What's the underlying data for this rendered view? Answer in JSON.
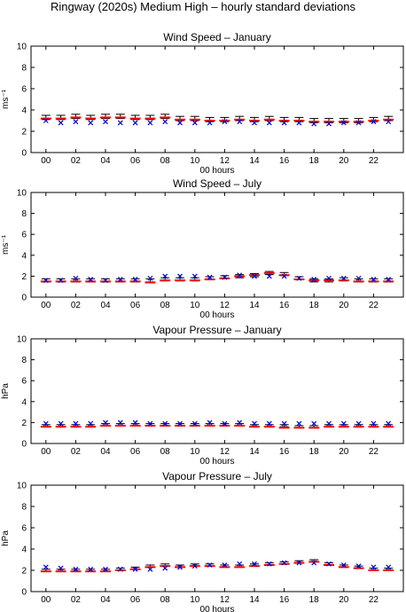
{
  "page_title": "Ringway (2020s) Medium High – hourly standard deviations",
  "chart_data": [
    {
      "type": "scatter",
      "title": "Wind Speed – January",
      "xlabel": "00 hours",
      "ylabel": "ms⁻¹",
      "xlim": [
        -1,
        24
      ],
      "ylim": [
        0,
        10
      ],
      "xticks": [
        0,
        2,
        4,
        6,
        8,
        10,
        12,
        14,
        16,
        18,
        20,
        22
      ],
      "xtick_labels": [
        "00",
        "02",
        "04",
        "06",
        "08",
        "10",
        "12",
        "14",
        "16",
        "18",
        "20",
        "22"
      ],
      "yticks": [
        0,
        2,
        4,
        6,
        8,
        10
      ],
      "x": [
        0,
        1,
        2,
        3,
        4,
        5,
        6,
        7,
        8,
        9,
        10,
        11,
        12,
        13,
        14,
        15,
        16,
        17,
        18,
        19,
        20,
        21,
        22,
        23
      ],
      "series": [
        {
          "marker": "errorbar",
          "color": "#000000",
          "values": [
            3.3,
            3.3,
            3.4,
            3.3,
            3.4,
            3.4,
            3.3,
            3.3,
            3.4,
            3.2,
            3.2,
            3.1,
            3.1,
            3.2,
            3.1,
            3.2,
            3.1,
            3.1,
            3.0,
            3.0,
            3.0,
            3.0,
            3.1,
            3.2
          ],
          "errors": [
            0.2,
            0.2,
            0.2,
            0.2,
            0.2,
            0.2,
            0.2,
            0.2,
            0.2,
            0.2,
            0.2,
            0.2,
            0.2,
            0.2,
            0.2,
            0.2,
            0.2,
            0.2,
            0.2,
            0.2,
            0.2,
            0.2,
            0.2,
            0.2
          ]
        },
        {
          "marker": "bar",
          "color": "#ff0000",
          "values": [
            3.2,
            3.2,
            3.3,
            3.2,
            3.3,
            3.3,
            3.2,
            3.2,
            3.3,
            3.1,
            3.1,
            3.0,
            3.0,
            3.1,
            3.0,
            3.1,
            3.0,
            3.0,
            2.9,
            2.9,
            2.9,
            2.9,
            3.0,
            3.1
          ]
        },
        {
          "marker": "x",
          "color": "#0000cc",
          "values": [
            3.0,
            2.8,
            2.9,
            2.8,
            2.9,
            2.8,
            2.8,
            2.8,
            2.9,
            2.8,
            2.8,
            2.8,
            2.9,
            2.9,
            2.8,
            2.8,
            2.8,
            2.8,
            2.7,
            2.7,
            2.8,
            2.8,
            2.9,
            2.9
          ]
        }
      ]
    },
    {
      "type": "scatter",
      "title": "Wind Speed – July",
      "xlabel": "00 hours",
      "ylabel": "ms⁻¹",
      "xlim": [
        -1,
        24
      ],
      "ylim": [
        0,
        10
      ],
      "xticks": [
        0,
        2,
        4,
        6,
        8,
        10,
        12,
        14,
        16,
        18,
        20,
        22
      ],
      "xtick_labels": [
        "00",
        "02",
        "04",
        "06",
        "08",
        "10",
        "12",
        "14",
        "16",
        "18",
        "20",
        "22"
      ],
      "yticks": [
        0,
        2,
        4,
        6,
        8,
        10
      ],
      "x": [
        0,
        1,
        2,
        3,
        4,
        5,
        6,
        7,
        8,
        9,
        10,
        11,
        12,
        13,
        14,
        15,
        16,
        17,
        18,
        19,
        20,
        21,
        22,
        23
      ],
      "series": [
        {
          "marker": "errorbar",
          "color": "#000000",
          "values": [
            1.6,
            1.6,
            1.6,
            1.6,
            1.6,
            1.6,
            1.6,
            1.6,
            1.7,
            1.7,
            1.7,
            1.8,
            1.9,
            2.0,
            2.1,
            2.3,
            2.2,
            1.8,
            1.6,
            1.6,
            1.7,
            1.6,
            1.6,
            1.6
          ],
          "errors": [
            0.15,
            0.15,
            0.15,
            0.15,
            0.15,
            0.15,
            0.15,
            0.15,
            0.15,
            0.15,
            0.15,
            0.15,
            0.15,
            0.15,
            0.15,
            0.15,
            0.15,
            0.15,
            0.15,
            0.15,
            0.15,
            0.15,
            0.15,
            0.15
          ]
        },
        {
          "marker": "bar",
          "color": "#ff0000",
          "values": [
            1.5,
            1.5,
            1.5,
            1.5,
            1.5,
            1.5,
            1.5,
            1.4,
            1.6,
            1.6,
            1.6,
            1.7,
            1.8,
            2.0,
            2.1,
            2.3,
            2.1,
            1.7,
            1.6,
            1.6,
            1.6,
            1.5,
            1.5,
            1.5
          ]
        },
        {
          "marker": "x",
          "color": "#0000cc",
          "values": [
            1.6,
            1.6,
            1.8,
            1.7,
            1.6,
            1.7,
            1.7,
            1.8,
            2.0,
            2.0,
            2.0,
            1.9,
            1.9,
            2.1,
            2.0,
            2.0,
            2.0,
            1.8,
            1.7,
            1.8,
            1.8,
            1.8,
            1.7,
            1.7
          ]
        }
      ]
    },
    {
      "type": "scatter",
      "title": "Vapour Pressure – January",
      "xlabel": "00 hours",
      "ylabel": "hPa",
      "xlim": [
        -1,
        24
      ],
      "ylim": [
        0,
        10
      ],
      "xticks": [
        0,
        2,
        4,
        6,
        8,
        10,
        12,
        14,
        16,
        18,
        20,
        22
      ],
      "xtick_labels": [
        "00",
        "02",
        "04",
        "06",
        "08",
        "10",
        "12",
        "14",
        "16",
        "18",
        "20",
        "22"
      ],
      "yticks": [
        0,
        2,
        4,
        6,
        8,
        10
      ],
      "x": [
        0,
        1,
        2,
        3,
        4,
        5,
        6,
        7,
        8,
        9,
        10,
        11,
        12,
        13,
        14,
        15,
        16,
        17,
        18,
        19,
        20,
        21,
        22,
        23
      ],
      "series": [
        {
          "marker": "errorbar",
          "color": "#000000",
          "values": [
            1.7,
            1.7,
            1.7,
            1.7,
            1.8,
            1.8,
            1.8,
            1.8,
            1.8,
            1.8,
            1.8,
            1.8,
            1.8,
            1.8,
            1.7,
            1.7,
            1.7,
            1.6,
            1.6,
            1.7,
            1.7,
            1.7,
            1.7,
            1.7
          ],
          "errors": [
            0.1,
            0.1,
            0.1,
            0.1,
            0.1,
            0.1,
            0.1,
            0.1,
            0.1,
            0.1,
            0.1,
            0.1,
            0.1,
            0.1,
            0.1,
            0.1,
            0.1,
            0.1,
            0.1,
            0.1,
            0.1,
            0.1,
            0.1,
            0.1
          ]
        },
        {
          "marker": "bar",
          "color": "#ff0000",
          "values": [
            1.6,
            1.6,
            1.6,
            1.6,
            1.7,
            1.7,
            1.7,
            1.7,
            1.7,
            1.7,
            1.7,
            1.7,
            1.7,
            1.7,
            1.6,
            1.6,
            1.5,
            1.5,
            1.5,
            1.6,
            1.6,
            1.6,
            1.6,
            1.6
          ]
        },
        {
          "marker": "x",
          "color": "#0000cc",
          "values": [
            1.9,
            1.9,
            1.9,
            1.9,
            2.0,
            2.0,
            2.0,
            1.9,
            1.9,
            1.9,
            1.9,
            2.0,
            1.9,
            2.0,
            1.9,
            1.9,
            1.9,
            1.9,
            1.9,
            1.9,
            1.9,
            1.9,
            1.9,
            1.9
          ]
        }
      ]
    },
    {
      "type": "scatter",
      "title": "Vapour Pressure – July",
      "xlabel": "00 hours",
      "ylabel": "hPa",
      "xlim": [
        -1,
        24
      ],
      "ylim": [
        0,
        10
      ],
      "xticks": [
        0,
        2,
        4,
        6,
        8,
        10,
        12,
        14,
        16,
        18,
        20,
        22
      ],
      "xtick_labels": [
        "00",
        "02",
        "04",
        "06",
        "08",
        "10",
        "12",
        "14",
        "16",
        "18",
        "20",
        "22"
      ],
      "yticks": [
        0,
        2,
        4,
        6,
        8,
        10
      ],
      "x": [
        0,
        1,
        2,
        3,
        4,
        5,
        6,
        7,
        8,
        9,
        10,
        11,
        12,
        13,
        14,
        15,
        16,
        17,
        18,
        19,
        20,
        21,
        22,
        23
      ],
      "series": [
        {
          "marker": "errorbar",
          "color": "#000000",
          "values": [
            2.0,
            2.0,
            2.0,
            2.0,
            2.0,
            2.1,
            2.2,
            2.4,
            2.5,
            2.4,
            2.5,
            2.5,
            2.4,
            2.4,
            2.5,
            2.6,
            2.7,
            2.8,
            2.9,
            2.6,
            2.4,
            2.3,
            2.1,
            2.1
          ],
          "errors": [
            0.1,
            0.1,
            0.1,
            0.1,
            0.1,
            0.1,
            0.1,
            0.1,
            0.1,
            0.1,
            0.1,
            0.1,
            0.1,
            0.1,
            0.1,
            0.1,
            0.1,
            0.1,
            0.1,
            0.1,
            0.1,
            0.1,
            0.1,
            0.1
          ]
        },
        {
          "marker": "bar",
          "color": "#ff0000",
          "values": [
            1.9,
            1.9,
            1.9,
            1.9,
            1.9,
            2.0,
            2.1,
            2.3,
            2.4,
            2.3,
            2.4,
            2.4,
            2.3,
            2.3,
            2.4,
            2.5,
            2.6,
            2.7,
            2.8,
            2.5,
            2.3,
            2.2,
            2.0,
            2.0
          ]
        },
        {
          "marker": "x",
          "color": "#0000cc",
          "values": [
            2.3,
            2.2,
            2.1,
            2.1,
            2.1,
            2.1,
            2.1,
            2.1,
            2.2,
            2.3,
            2.4,
            2.5,
            2.5,
            2.6,
            2.6,
            2.6,
            2.7,
            2.7,
            2.7,
            2.6,
            2.5,
            2.4,
            2.3,
            2.3
          ]
        }
      ]
    }
  ]
}
